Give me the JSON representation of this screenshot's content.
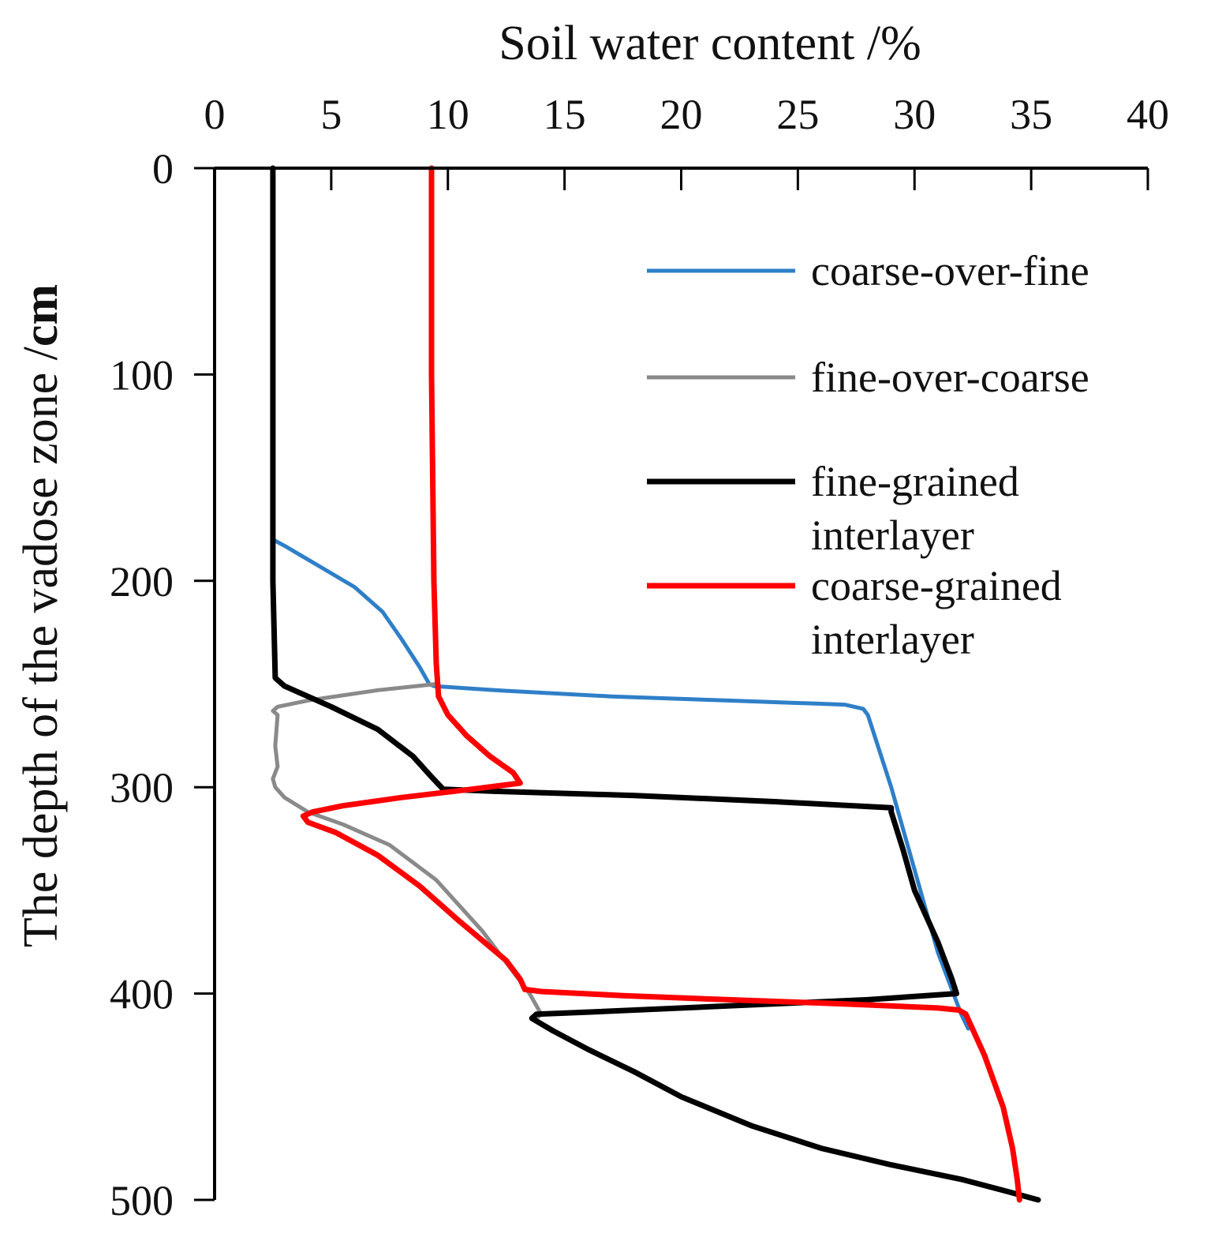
{
  "chart_data": {
    "type": "line",
    "title": "",
    "xlabel": "Soil water content /%",
    "ylabel": "The depth of the vadose zone /cm",
    "ylabel_unit": "cm",
    "xlim": [
      0,
      40
    ],
    "ylim": [
      0,
      500
    ],
    "y_inverted": true,
    "x_axis_position": "top",
    "grid": false,
    "x_ticks": [
      "0",
      "5",
      "10",
      "15",
      "20",
      "25",
      "30",
      "35",
      "40"
    ],
    "y_ticks": [
      "0",
      "100",
      "200",
      "300",
      "400",
      "500"
    ],
    "legend_position": "top-right",
    "series": [
      {
        "name": "coarse-over-fine",
        "color": "#2f7fc8",
        "x": [
          2.5,
          2.5,
          2.5,
          3.0,
          4.5,
          6.0,
          7.2,
          8.0,
          8.8,
          9.2,
          9.4,
          12.0,
          17.0,
          22.0,
          27.0,
          27.8,
          28.0,
          29.0,
          30.0,
          31.0,
          32.0,
          32.3
        ],
        "y": [
          0,
          100,
          180,
          183,
          193,
          203,
          215,
          228,
          242,
          250,
          251,
          253,
          256,
          258,
          260,
          262,
          265,
          300,
          340,
          380,
          410,
          417
        ]
      },
      {
        "name": "fine-over-coarse",
        "color": "#8a8a8a",
        "x": [
          9.5,
          7.0,
          4.0,
          2.7,
          2.5,
          2.7,
          2.6,
          2.7,
          2.5,
          2.6,
          3.0,
          4.0,
          5.5,
          7.5,
          9.5,
          11.5,
          13.5,
          14.0,
          13.8
        ],
        "y": [
          250,
          253,
          258,
          261,
          263,
          265,
          280,
          290,
          296,
          300,
          305,
          312,
          318,
          328,
          345,
          370,
          400,
          410,
          412
        ]
      },
      {
        "name": "fine-grained interlayer",
        "color": "#000000",
        "x": [
          2.5,
          2.5,
          2.5,
          2.6,
          3.0,
          5.0,
          7.0,
          8.5,
          9.3,
          9.8,
          12.0,
          18.0,
          24.0,
          29.0,
          29.0,
          29.5,
          30.0,
          31.0,
          31.6,
          31.8,
          28.0,
          22.0,
          16.0,
          13.8,
          13.6,
          14.5,
          16.0,
          18.0,
          20.0,
          23.0,
          26.0,
          29.0,
          32.0,
          34.0,
          35.3
        ],
        "y": [
          0,
          100,
          200,
          247,
          251,
          261,
          272,
          285,
          295,
          301,
          302,
          304,
          307,
          310,
          312,
          330,
          350,
          375,
          393,
          400,
          403,
          406,
          409,
          410,
          412,
          418,
          427,
          438,
          450,
          464,
          475,
          483,
          490,
          496,
          500
        ]
      },
      {
        "name": "coarse-grained interlayer",
        "color": "#ff0000",
        "x": [
          9.3,
          9.3,
          9.4,
          9.5,
          9.6,
          10.0,
          10.8,
          11.8,
          12.8,
          13.1,
          11.0,
          8.0,
          5.5,
          4.2,
          3.8,
          4.0,
          5.2,
          7.0,
          8.8,
          10.5,
          12.5,
          13.1,
          13.3,
          14.0,
          17.5,
          22.0,
          27.0,
          31.0,
          31.9,
          32.2,
          33.0,
          33.8,
          34.2,
          34.4,
          34.5
        ],
        "y": [
          0,
          100,
          200,
          240,
          256,
          265,
          275,
          285,
          293,
          298,
          301,
          305,
          309,
          312,
          314,
          317,
          322,
          333,
          348,
          365,
          384,
          393,
          398,
          399,
          401,
          403,
          405,
          407,
          408,
          410,
          430,
          455,
          475,
          490,
          500
        ]
      }
    ]
  }
}
